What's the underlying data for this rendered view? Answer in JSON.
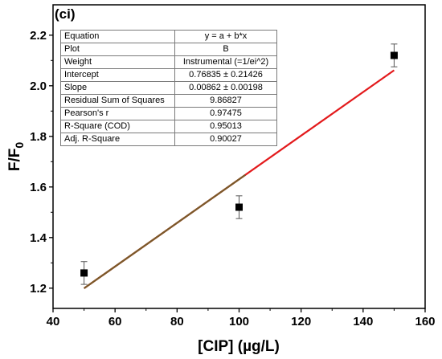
{
  "panel_label": "(ci)",
  "stats_table": [
    {
      "label": "Equation",
      "value": "y = a + b*x"
    },
    {
      "label": "Plot",
      "value": "B"
    },
    {
      "label": "Weight",
      "value": "Instrumental (=1/ei^2)"
    },
    {
      "label": "Intercept",
      "value": "0.76835 ± 0.21426"
    },
    {
      "label": "Slope",
      "value": "0.00862 ± 0.00198"
    },
    {
      "label": "Residual Sum of Squares",
      "value": "9.86827"
    },
    {
      "label": "Pearson's r",
      "value": "0.97475"
    },
    {
      "label": "R-Square (COD)",
      "value": "0.95013"
    },
    {
      "label": "Adj. R-Square",
      "value": "0.90027"
    }
  ],
  "chart_data": {
    "type": "scatter",
    "xlabel": "[CIP] (µg/L)",
    "ylabel_main": "F/F",
    "ylabel_sub": "0",
    "xlim": [
      40,
      160
    ],
    "ylim": [
      1.12,
      2.32
    ],
    "x_ticks": [
      40,
      60,
      80,
      100,
      120,
      140,
      160
    ],
    "y_ticks": [
      1.2,
      1.4,
      1.6,
      1.8,
      2.0,
      2.2
    ],
    "grid": false,
    "legend": "none",
    "series": [
      {
        "points": [
          {
            "x": 50,
            "y": 1.26,
            "err": 0.045
          },
          {
            "x": 100,
            "y": 1.52,
            "err": 0.045
          },
          {
            "x": 150,
            "y": 2.12,
            "err": 0.045
          }
        ],
        "color": "#000000"
      }
    ],
    "fit_line": {
      "intercept": 0.76835,
      "slope": 0.00862,
      "x_range": [
        50,
        150
      ],
      "color": "#e31a1c",
      "overlay_color": "#7a5a2a"
    }
  }
}
